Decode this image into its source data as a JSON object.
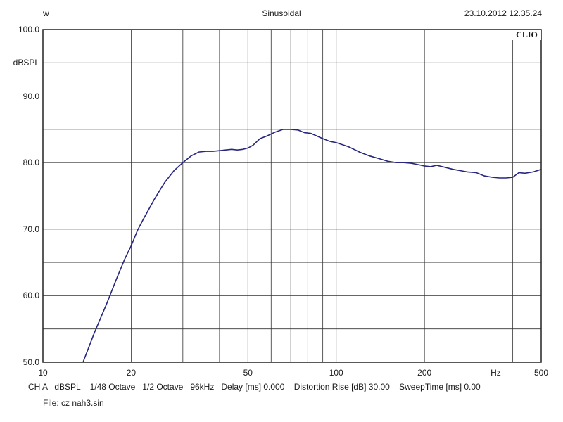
{
  "header": {
    "left": "w",
    "center": "Sinusoidal",
    "right": "23.10.2012 12.35.24"
  },
  "brand": "CLIO",
  "footer": {
    "line1": "CH A   dBSPL    1/48 Octave   1/2 Octave   96kHz   Delay [ms] 0.000    Distortion Rise [dB] 30.00    SweepTime [ms] 0.00",
    "line2": "File: cz nah3.sin"
  },
  "colors": {
    "curve": "#262680",
    "grid": "#333333",
    "background": "#ffffff"
  },
  "chart_data": {
    "type": "line",
    "title": "Sinusoidal",
    "xlabel": "Hz",
    "ylabel": "dBSPL",
    "xscale": "log",
    "xlim": [
      10,
      500
    ],
    "ylim": [
      50,
      100
    ],
    "grid": true,
    "xticks": [
      {
        "v": 10,
        "label": "10"
      },
      {
        "v": 20,
        "label": "20"
      },
      {
        "v": 50,
        "label": "50"
      },
      {
        "v": 100,
        "label": "100"
      },
      {
        "v": 200,
        "label": "200"
      },
      {
        "v": 350,
        "label": "Hz"
      },
      {
        "v": 500,
        "label": "500"
      }
    ],
    "yticks": [
      {
        "v": 100,
        "label": "100.0"
      },
      {
        "v": 95,
        "label": "dBSPL"
      },
      {
        "v": 90,
        "label": "90.0"
      },
      {
        "v": 80,
        "label": "80.0"
      },
      {
        "v": 70,
        "label": "70.0"
      },
      {
        "v": 60,
        "label": "60.0"
      },
      {
        "v": 50,
        "label": "50.0"
      }
    ],
    "series": [
      {
        "x": [
          13.7,
          15,
          16.5,
          18,
          19,
          20,
          21,
          22,
          24,
          26,
          28,
          30,
          32,
          34,
          36,
          38,
          40,
          42,
          44,
          46,
          48,
          50,
          52,
          55,
          58,
          62,
          66,
          70,
          74,
          78,
          82,
          86,
          90,
          95,
          100,
          110,
          120,
          130,
          140,
          150,
          160,
          170,
          180,
          190,
          200,
          210,
          220,
          230,
          240,
          250,
          265,
          280,
          300,
          320,
          340,
          360,
          380,
          400,
          420,
          440,
          470,
          500
        ],
        "y": [
          50.0,
          54.5,
          58.8,
          63.0,
          65.5,
          67.5,
          69.8,
          71.5,
          74.5,
          77.0,
          78.8,
          80.0,
          81.0,
          81.6,
          81.7,
          81.7,
          81.8,
          81.9,
          82.0,
          81.9,
          82.0,
          82.2,
          82.6,
          83.6,
          84.0,
          84.6,
          85.0,
          85.0,
          84.9,
          84.5,
          84.4,
          84.0,
          83.6,
          83.2,
          83.0,
          82.4,
          81.6,
          81.0,
          80.6,
          80.2,
          80.0,
          80.0,
          79.9,
          79.7,
          79.5,
          79.4,
          79.6,
          79.4,
          79.2,
          79.0,
          78.8,
          78.6,
          78.5,
          78.0,
          77.8,
          77.7,
          77.7,
          77.8,
          78.5,
          78.4,
          78.6,
          79.0
        ]
      }
    ]
  }
}
